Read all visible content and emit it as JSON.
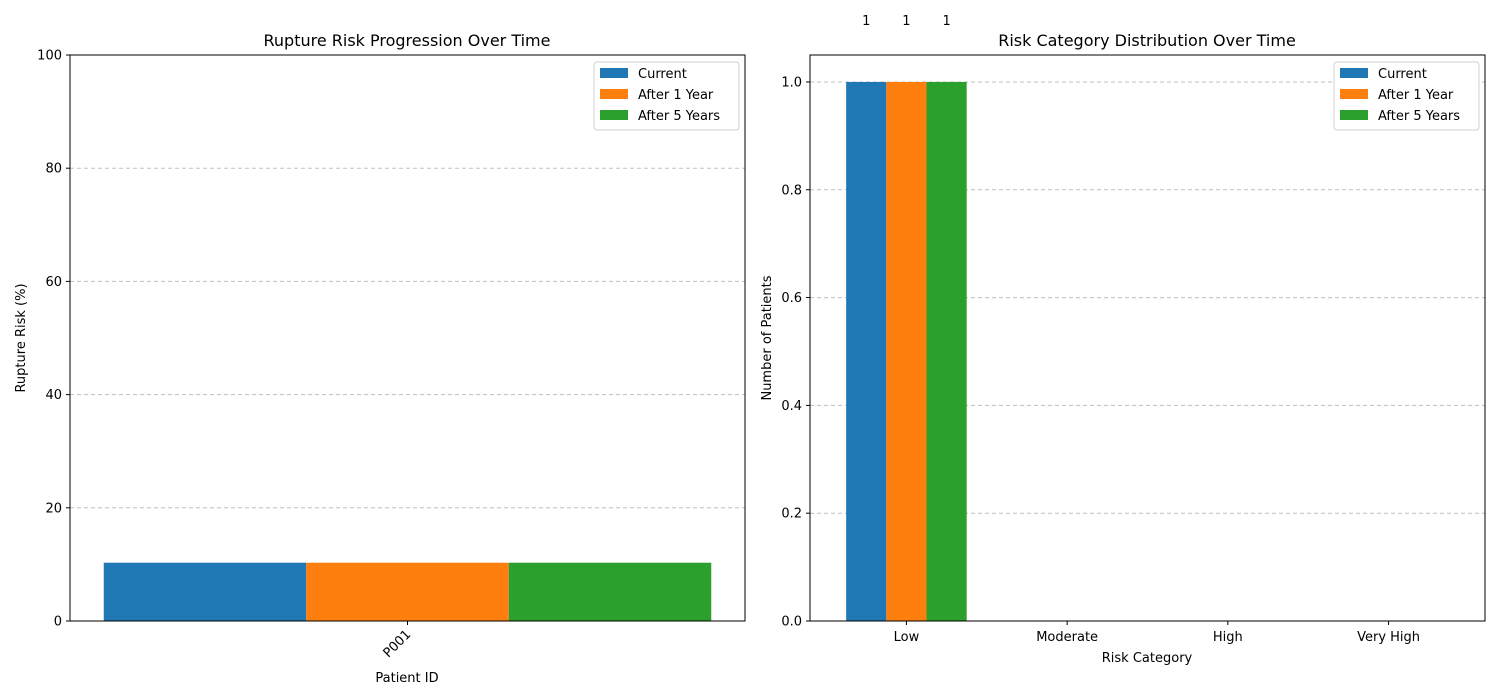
{
  "chart_data": [
    {
      "type": "bar",
      "title": "Rupture Risk Progression Over Time",
      "xlabel": "Patient ID",
      "ylabel": "Rupture Risk (%)",
      "categories": [
        "P001"
      ],
      "series": [
        {
          "name": "Current",
          "values": [
            10.3
          ]
        },
        {
          "name": "After 1 Year",
          "values": [
            10.3
          ]
        },
        {
          "name": "After 5 Years",
          "values": [
            10.3
          ]
        }
      ],
      "ylim": [
        0,
        100
      ],
      "yticks": [
        0,
        20,
        40,
        60,
        80,
        100
      ],
      "grid": "y-dashed",
      "legend": "top-right",
      "colors": [
        "#1f77b4",
        "#ff7f0e",
        "#2ca02c"
      ]
    },
    {
      "type": "bar",
      "title": "Risk Category Distribution Over Time",
      "xlabel": "Risk Category",
      "ylabel": "Number of Patients",
      "categories": [
        "Low",
        "Moderate",
        "High",
        "Very High"
      ],
      "series": [
        {
          "name": "Current",
          "values": [
            1,
            0,
            0,
            0
          ]
        },
        {
          "name": "After 1 Year",
          "values": [
            1,
            0,
            0,
            0
          ]
        },
        {
          "name": "After 5 Years",
          "values": [
            1,
            0,
            0,
            0
          ]
        }
      ],
      "data_labels": [
        "1",
        "1",
        "1"
      ],
      "ylim": [
        0,
        1.05
      ],
      "yticks": [
        "0.0",
        "0.2",
        "0.4",
        "0.6",
        "0.8",
        "1.0"
      ],
      "grid": "y-dashed",
      "legend": "top-right",
      "colors": [
        "#1f77b4",
        "#ff7f0e",
        "#2ca02c"
      ]
    }
  ]
}
